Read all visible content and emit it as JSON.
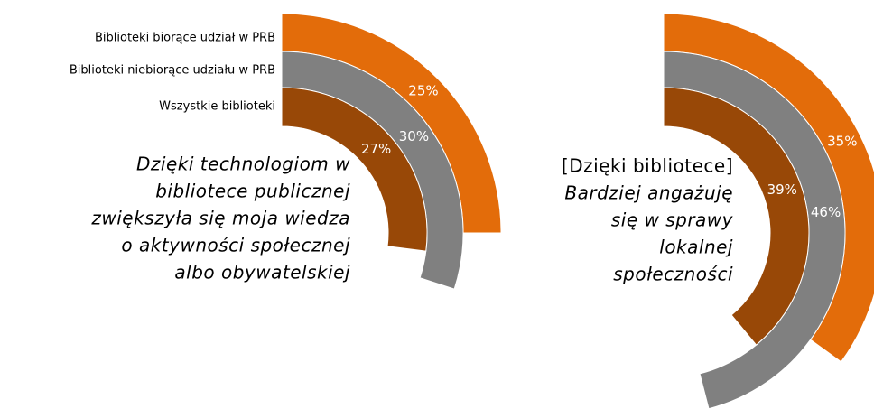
{
  "chart_data": [
    {
      "type": "radial_bar",
      "title": [
        "Dzięki technologiom w",
        "bibliotece publicznej",
        "zwiększyła się moja wiedza",
        "o aktywności społecznej",
        "albo obywatelskiej"
      ],
      "series": [
        {
          "name": "Biblioteki biorące udział w PRB",
          "color": "#E36C0A",
          "values": [
            25
          ],
          "value_labels": [
            "25%"
          ]
        },
        {
          "name": "Biblioteki niebiorące udziału w PRB",
          "color": "#808080",
          "values": [
            30
          ],
          "value_labels": [
            "30%"
          ]
        },
        {
          "name": "Wszystkie biblioteki",
          "color": "#984807",
          "values": [
            27
          ],
          "value_labels": [
            "27%"
          ]
        }
      ]
    },
    {
      "type": "radial_bar",
      "title": [
        "[Dzięki bibliotece]",
        "Bardziej angażuję",
        "się w sprawy",
        "lokalnej",
        "społeczności"
      ],
      "series": [
        {
          "color": "#E36C0A",
          "values": [
            35
          ],
          "value_labels": [
            "35%"
          ]
        },
        {
          "color": "#808080",
          "values": [
            46
          ],
          "value_labels": [
            "46%"
          ]
        },
        {
          "color": "#984807",
          "values": [
            39
          ],
          "value_labels": [
            "39%"
          ]
        }
      ]
    }
  ]
}
